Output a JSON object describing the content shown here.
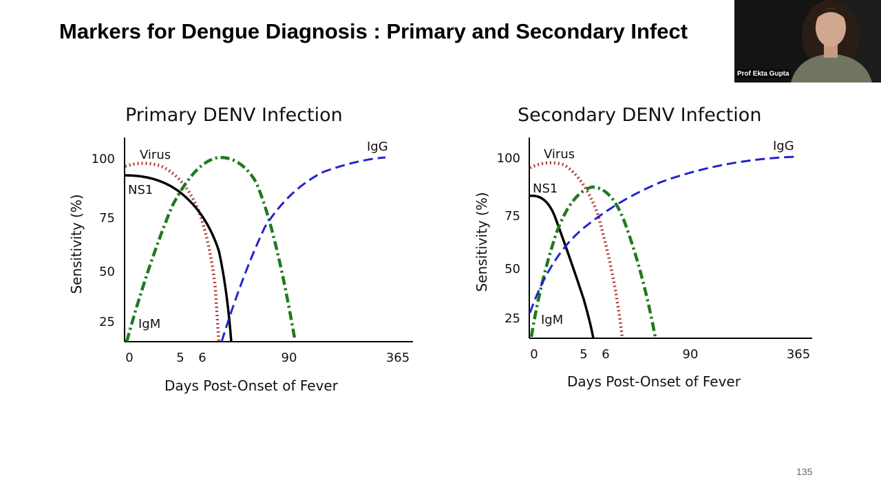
{
  "slide": {
    "title": "Markers for Dengue Diagnosis : Primary and Secondary Infect",
    "page_number": "135"
  },
  "video": {
    "participant_name": "Prof Ekta Gupta"
  },
  "colors": {
    "Virus": "#b03a3a",
    "NS1": "#000000",
    "IgM": "#1f7a1f",
    "IgG": "#2222cc"
  },
  "chart_data": [
    {
      "type": "line",
      "title": "Primary DENV Infection",
      "xlabel": "Days Post-Onset of Fever",
      "ylabel": "Sensitivity (%)",
      "x_ticks": [
        "0",
        "5",
        "6",
        "90",
        "365"
      ],
      "y_ticks": [
        "100",
        "75",
        "50",
        "25"
      ],
      "series": [
        {
          "name": "Virus",
          "style": "dotted",
          "points": [
            [
              0,
              97
            ],
            [
              1,
              97.5
            ],
            [
              2,
              96
            ],
            [
              3,
              90
            ],
            [
              4,
              80
            ],
            [
              5,
              60
            ],
            [
              5.6,
              35
            ],
            [
              5.9,
              18
            ]
          ]
        },
        {
          "name": "NS1",
          "style": "solid",
          "points": [
            [
              0,
              92
            ],
            [
              1,
              91
            ],
            [
              2,
              89
            ],
            [
              3,
              82
            ],
            [
              4,
              73
            ],
            [
              5,
              55
            ],
            [
              5.8,
              37
            ],
            [
              6.3,
              18
            ]
          ]
        },
        {
          "name": "IgM",
          "style": "dash-dot",
          "points": [
            [
              0,
              18
            ],
            [
              1,
              45
            ],
            [
              2,
              70
            ],
            [
              3,
              88
            ],
            [
              5,
              101
            ],
            [
              6,
              99
            ],
            [
              7,
              92
            ],
            [
              80,
              65
            ],
            [
              90,
              20
            ]
          ]
        },
        {
          "name": "IgG",
          "style": "dashed",
          "points": [
            [
              5.5,
              18
            ],
            [
              6,
              35
            ],
            [
              40,
              70
            ],
            [
              90,
              85
            ],
            [
              150,
              94
            ],
            [
              200,
              98
            ],
            [
              300,
              100
            ],
            [
              365,
              100
            ]
          ]
        }
      ]
    },
    {
      "type": "line",
      "title": "Secondary DENV Infection",
      "xlabel": "Days Post-Onset of Fever",
      "ylabel": "Sensitivity (%)",
      "x_ticks": [
        "0",
        "5",
        "6",
        "90",
        "365"
      ],
      "y_ticks": [
        "100",
        "75",
        "50",
        "25"
      ],
      "series": [
        {
          "name": "Virus",
          "style": "dotted",
          "points": [
            [
              0,
              96
            ],
            [
              1,
              97
            ],
            [
              2,
              96
            ],
            [
              3,
              90
            ],
            [
              4,
              80
            ],
            [
              5,
              70
            ],
            [
              6,
              45
            ],
            [
              6.8,
              20
            ]
          ]
        },
        {
          "name": "NS1",
          "style": "solid",
          "points": [
            [
              0,
              85
            ],
            [
              1,
              83
            ],
            [
              2,
              75
            ],
            [
              3,
              60
            ],
            [
              4,
              40
            ],
            [
              5,
              25
            ],
            [
              5.2,
              20
            ]
          ]
        },
        {
          "name": "IgM",
          "style": "dash-dot",
          "points": [
            [
              0,
              18
            ],
            [
              1,
              45
            ],
            [
              2,
              65
            ],
            [
              3,
              78
            ],
            [
              5,
              87
            ],
            [
              6,
              85
            ],
            [
              30,
              72
            ],
            [
              60,
              45
            ],
            [
              90,
              20
            ]
          ]
        },
        {
          "name": "IgG",
          "style": "dashed",
          "points": [
            [
              0,
              30
            ],
            [
              2,
              45
            ],
            [
              4,
              60
            ],
            [
              6,
              70
            ],
            [
              45,
              86
            ],
            [
              90,
              92
            ],
            [
              200,
              98
            ],
            [
              365,
              100
            ]
          ]
        }
      ]
    }
  ]
}
